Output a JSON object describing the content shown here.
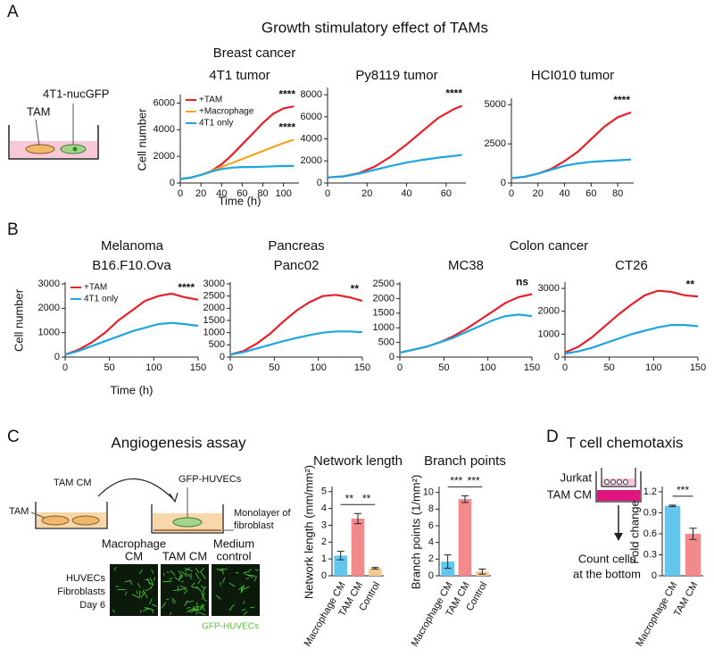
{
  "panel_labels": [
    "A",
    "B",
    "C",
    "D"
  ],
  "panel_a": {
    "title": "Growth stimulatory effect of TAMs",
    "group": "Breast cancer",
    "schematic": {
      "cells": "4T1-nucGFP",
      "tam": "TAM"
    }
  },
  "panel_b": {
    "groups": [
      "Melanoma",
      "Pancreas",
      "Colon cancer"
    ]
  },
  "panel_c": {
    "title": "Angiogenesis assay",
    "schematic": {
      "tam_cm": "TAM CM",
      "huvecs": "GFP-HUVECs",
      "tam": "TAM",
      "monolayer": [
        "Monolayer of",
        "fibroblast"
      ]
    },
    "images": {
      "columns": [
        [
          "Macrophage",
          "CM"
        ],
        [
          "TAM CM"
        ],
        [
          "Medium",
          "control"
        ]
      ],
      "rows": [
        "HUVECs",
        "Fibroblasts",
        "Day 6"
      ],
      "stain": "GFP-HUVECs"
    }
  },
  "panel_d": {
    "title": "T cell chemotaxis",
    "schematic": {
      "jurkat": "Jurkat",
      "tam_cm": "TAM CM",
      "count": [
        "Count cells",
        "at the bottom"
      ]
    }
  },
  "chart_data": [
    {
      "type": "line",
      "title": "4T1 tumor",
      "xlabel": "Time (h)",
      "ylabel": "Cell number",
      "legend": true,
      "x": [
        0,
        10,
        20,
        30,
        40,
        50,
        60,
        70,
        80,
        90,
        100,
        110
      ],
      "xlim": [
        0,
        115
      ],
      "xticks": [
        0,
        20,
        40,
        60,
        80,
        100
      ],
      "ylim": [
        0,
        6500
      ],
      "yticks": [
        0,
        2000,
        4000,
        6000
      ],
      "series": [
        {
          "name": "+TAM",
          "color": "#e8202a",
          "values": [
            300,
            400,
            600,
            900,
            1400,
            2100,
            2900,
            3700,
            4500,
            5200,
            5600,
            5750
          ]
        },
        {
          "name": "+Macrophage",
          "color": "#f5a623",
          "values": [
            300,
            400,
            600,
            900,
            1200,
            1500,
            1800,
            2100,
            2400,
            2700,
            3000,
            3250
          ]
        },
        {
          "name": "4T1 only",
          "color": "#1ea6e0",
          "values": [
            300,
            400,
            600,
            850,
            1050,
            1150,
            1200,
            1200,
            1220,
            1250,
            1270,
            1280
          ]
        }
      ],
      "annotations": [
        {
          "text": "****",
          "series": 0
        },
        {
          "text": "****",
          "series": 1
        }
      ]
    },
    {
      "type": "line",
      "title": "Py8119 tumor",
      "x": [
        0,
        8,
        16,
        24,
        32,
        40,
        48,
        56,
        64,
        68
      ],
      "xlim": [
        0,
        70
      ],
      "xticks": [
        0,
        20,
        40,
        60
      ],
      "ylim": [
        0,
        8500
      ],
      "yticks": [
        0,
        2000,
        4000,
        6000,
        8000
      ],
      "series": [
        {
          "color": "#e8202a",
          "values": [
            500,
            600,
            900,
            1500,
            2400,
            3500,
            4700,
            5900,
            6700,
            7000
          ]
        },
        {
          "color": "#1ea6e0",
          "values": [
            500,
            600,
            850,
            1200,
            1550,
            1850,
            2100,
            2300,
            2450,
            2550
          ]
        }
      ],
      "annotations": [
        {
          "text": "****",
          "series": 0
        }
      ]
    },
    {
      "type": "line",
      "title": "HCI010 tumor",
      "x": [
        0,
        10,
        20,
        30,
        40,
        50,
        60,
        70,
        80,
        90
      ],
      "xlim": [
        0,
        92
      ],
      "xticks": [
        0,
        20,
        40,
        60,
        80
      ],
      "ylim": [
        0,
        5300
      ],
      "yticks": [
        0,
        2500,
        5000
      ],
      "series": [
        {
          "color": "#e8202a",
          "values": [
            300,
            400,
            600,
            900,
            1400,
            2000,
            2800,
            3600,
            4200,
            4500
          ]
        },
        {
          "color": "#1ea6e0",
          "values": [
            300,
            400,
            600,
            850,
            1100,
            1250,
            1350,
            1400,
            1450,
            1500
          ]
        }
      ],
      "annotations": [
        {
          "text": "****",
          "series": 0
        }
      ]
    },
    {
      "type": "line",
      "title": "B16.F10.Ova",
      "xlabel": "Time (h)",
      "ylabel": "Cell number",
      "legend": true,
      "x": [
        0,
        15,
        30,
        45,
        60,
        75,
        90,
        105,
        120,
        135,
        150
      ],
      "xlim": [
        0,
        150
      ],
      "xticks": [
        0,
        50,
        100,
        150
      ],
      "ylim": [
        0,
        3000
      ],
      "yticks": [
        0,
        1000,
        2000,
        3000
      ],
      "series": [
        {
          "name": "+TAM",
          "color": "#e8202a",
          "values": [
            100,
            300,
            600,
            1000,
            1500,
            1900,
            2300,
            2500,
            2600,
            2450,
            2350
          ]
        },
        {
          "name": "4T1 only",
          "color": "#1ea6e0",
          "values": [
            100,
            250,
            450,
            650,
            850,
            1050,
            1200,
            1350,
            1400,
            1350,
            1280
          ]
        }
      ],
      "annotations": [
        {
          "text": "****",
          "series": 0
        }
      ]
    },
    {
      "type": "line",
      "title": "Panc02",
      "x": [
        0,
        15,
        30,
        45,
        60,
        75,
        90,
        105,
        120,
        135,
        150
      ],
      "xlim": [
        0,
        150
      ],
      "xticks": [
        0,
        50,
        100,
        150
      ],
      "ylim": [
        0,
        3000
      ],
      "yticks": [
        0,
        500,
        1000,
        1500,
        2000,
        2500,
        3000
      ],
      "series": [
        {
          "color": "#e8202a",
          "values": [
            100,
            250,
            550,
            950,
            1450,
            1900,
            2250,
            2500,
            2550,
            2450,
            2300
          ]
        },
        {
          "color": "#1ea6e0",
          "values": [
            100,
            200,
            350,
            500,
            650,
            780,
            900,
            1000,
            1050,
            1050,
            1020
          ]
        }
      ],
      "annotations": [
        {
          "text": "**",
          "series": 0
        }
      ]
    },
    {
      "type": "line",
      "title": "MC38",
      "x": [
        0,
        15,
        30,
        45,
        60,
        75,
        90,
        105,
        120,
        135,
        150
      ],
      "xlim": [
        0,
        150
      ],
      "xticks": [
        0,
        50,
        100,
        150
      ],
      "ylim": [
        0,
        2500
      ],
      "yticks": [
        0,
        500,
        1000,
        1500,
        2000,
        2500
      ],
      "series": [
        {
          "color": "#e8202a",
          "values": [
            150,
            250,
            350,
            500,
            700,
            950,
            1250,
            1550,
            1850,
            2050,
            2150
          ]
        },
        {
          "color": "#1ea6e0",
          "values": [
            150,
            250,
            350,
            500,
            650,
            850,
            1050,
            1250,
            1400,
            1450,
            1400
          ]
        }
      ],
      "annotations": [
        {
          "text": "ns",
          "series": 0
        }
      ]
    },
    {
      "type": "line",
      "title": "CT26",
      "x": [
        0,
        15,
        30,
        45,
        60,
        75,
        90,
        105,
        120,
        135,
        150
      ],
      "xlim": [
        0,
        150
      ],
      "xticks": [
        0,
        50,
        100,
        150
      ],
      "ylim": [
        0,
        3200
      ],
      "yticks": [
        0,
        1000,
        2000,
        3000
      ],
      "series": [
        {
          "color": "#e8202a",
          "values": [
            200,
            450,
            850,
            1350,
            1850,
            2300,
            2700,
            2900,
            2850,
            2700,
            2650
          ]
        },
        {
          "color": "#1ea6e0",
          "values": [
            150,
            250,
            400,
            600,
            800,
            1000,
            1150,
            1300,
            1400,
            1400,
            1350
          ]
        }
      ],
      "annotations": [
        {
          "text": "**",
          "series": 0
        }
      ]
    },
    {
      "type": "bar",
      "title": "Network length",
      "ylabel": "Network length (mm/mm²)",
      "categories": [
        "Macrophage CM",
        "TAM CM",
        "Control"
      ],
      "values": [
        1.2,
        3.4,
        0.45
      ],
      "errors": [
        0.25,
        0.3,
        0.05
      ],
      "colors": [
        "#62c6ee",
        "#f28a8c",
        "#f9c98e"
      ],
      "ylim": [
        0,
        5.2
      ],
      "yticks": [
        0,
        1,
        2,
        3,
        4,
        5
      ],
      "significance": [
        {
          "text": "**",
          "pair": [
            0,
            1
          ]
        },
        {
          "text": "**",
          "pair": [
            1,
            2
          ]
        }
      ]
    },
    {
      "type": "bar",
      "title": "Branch points",
      "ylabel": "Branch points (1/mm²)",
      "categories": [
        "Macrophage CM",
        "TAM CM",
        "Control"
      ],
      "values": [
        1.7,
        9.2,
        0.5
      ],
      "errors": [
        0.8,
        0.4,
        0.3
      ],
      "colors": [
        "#62c6ee",
        "#f28a8c",
        "#f9c98e"
      ],
      "ylim": [
        0,
        10.5
      ],
      "yticks": [
        0,
        2,
        4,
        6,
        8,
        10
      ],
      "significance": [
        {
          "text": "***",
          "pair": [
            0,
            1
          ]
        },
        {
          "text": "***",
          "pair": [
            1,
            2
          ]
        }
      ]
    },
    {
      "type": "bar",
      "ylabel": "Fold change",
      "categories": [
        "Macrophage CM",
        "TAM CM"
      ],
      "values": [
        1.0,
        0.6
      ],
      "errors": [
        0.01,
        0.08
      ],
      "colors": [
        "#62c6ee",
        "#f28a8c"
      ],
      "ylim": [
        0,
        1.25
      ],
      "yticks": [
        0,
        0.3,
        0.6,
        0.9,
        1.2
      ],
      "significance": [
        {
          "text": "***",
          "pair": [
            0,
            1
          ]
        }
      ]
    }
  ]
}
